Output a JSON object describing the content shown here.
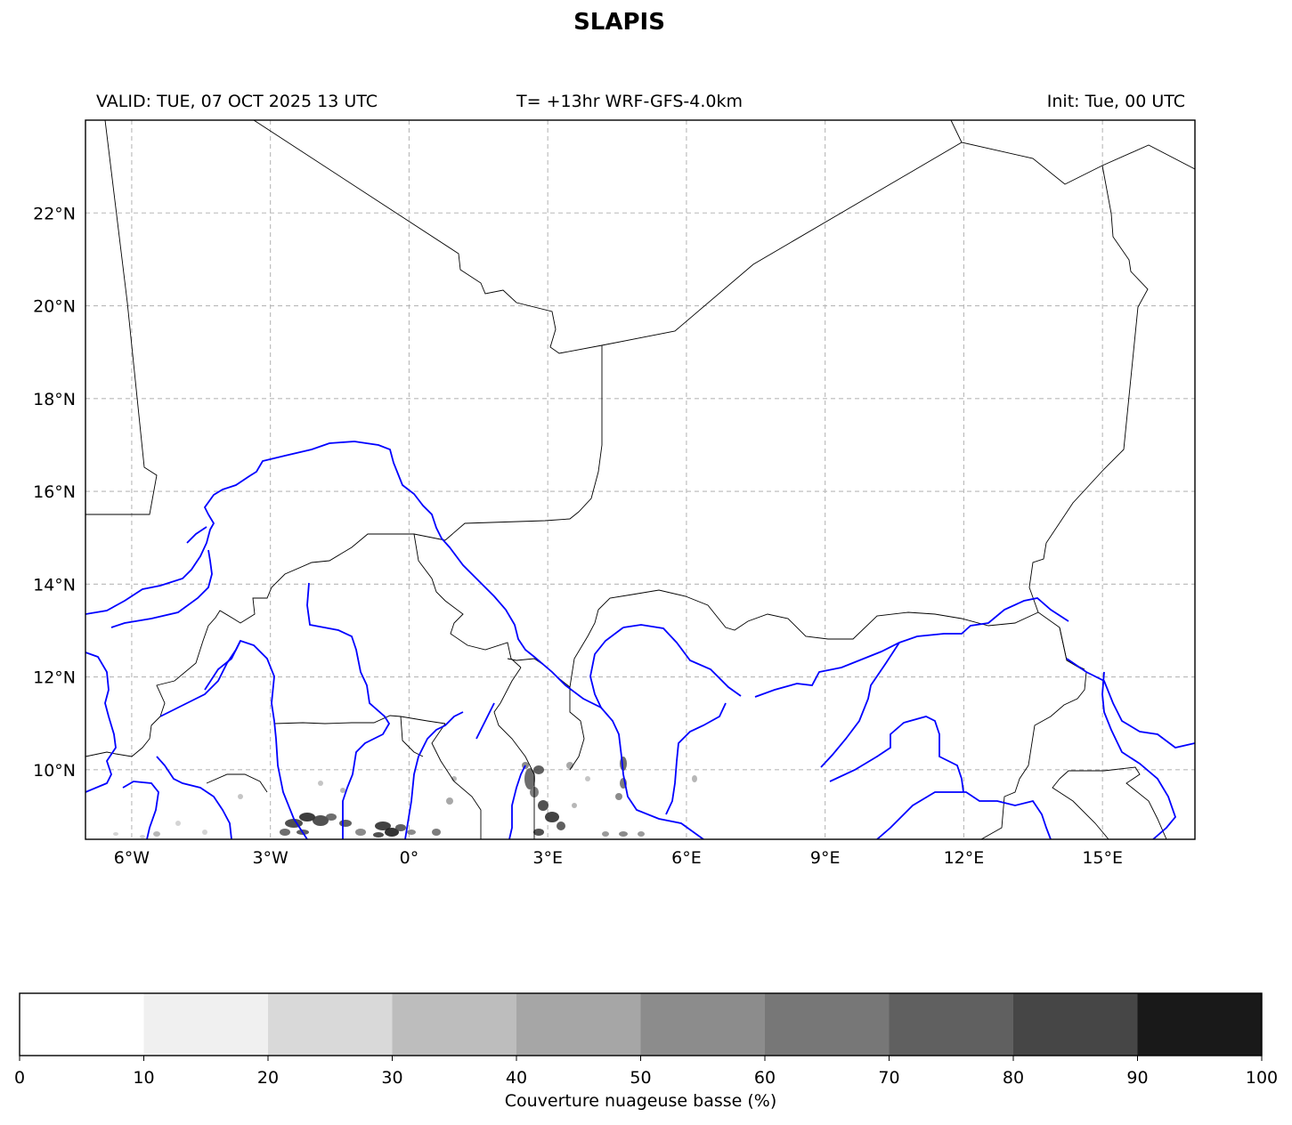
{
  "title": "SLAPIS",
  "header": {
    "valid": "VALID: TUE, 07 OCT 2025 13 UTC",
    "model": "T= +13hr WRF-GFS-4.0km",
    "init": "Init: Tue, 00 UTC"
  },
  "map": {
    "lon_range": [
      -7,
      17
    ],
    "lat_range": [
      8.5,
      24
    ],
    "lon_ticks": [
      {
        "value": -6,
        "label": "6°W"
      },
      {
        "value": -3,
        "label": "3°W"
      },
      {
        "value": 0,
        "label": "0°"
      },
      {
        "value": 3,
        "label": "3°E"
      },
      {
        "value": 6,
        "label": "6°E"
      },
      {
        "value": 9,
        "label": "9°E"
      },
      {
        "value": 12,
        "label": "12°E"
      },
      {
        "value": 15,
        "label": "15°E"
      }
    ],
    "lat_ticks": [
      {
        "value": 22,
        "label": "22°N"
      },
      {
        "value": 20,
        "label": "20°N"
      },
      {
        "value": 18,
        "label": "18°N"
      },
      {
        "value": 16,
        "label": "16°N"
      },
      {
        "value": 14,
        "label": "14°N"
      },
      {
        "value": 12,
        "label": "12°N"
      },
      {
        "value": 10,
        "label": "10°N"
      }
    ],
    "gridlines": true,
    "border_color": "#000000",
    "river_color": "#0000ff"
  },
  "colorbar": {
    "label": "Couverture nuageuse basse (%)",
    "ticks": [
      "0",
      "10",
      "20",
      "30",
      "40",
      "50",
      "60",
      "70",
      "80",
      "90",
      "100"
    ],
    "colors": [
      "#ffffff",
      "#f0f0f0",
      "#d9d9d9",
      "#bdbdbd",
      "#a6a6a6",
      "#8c8c8c",
      "#777777",
      "#606060",
      "#464646",
      "#191919"
    ]
  }
}
